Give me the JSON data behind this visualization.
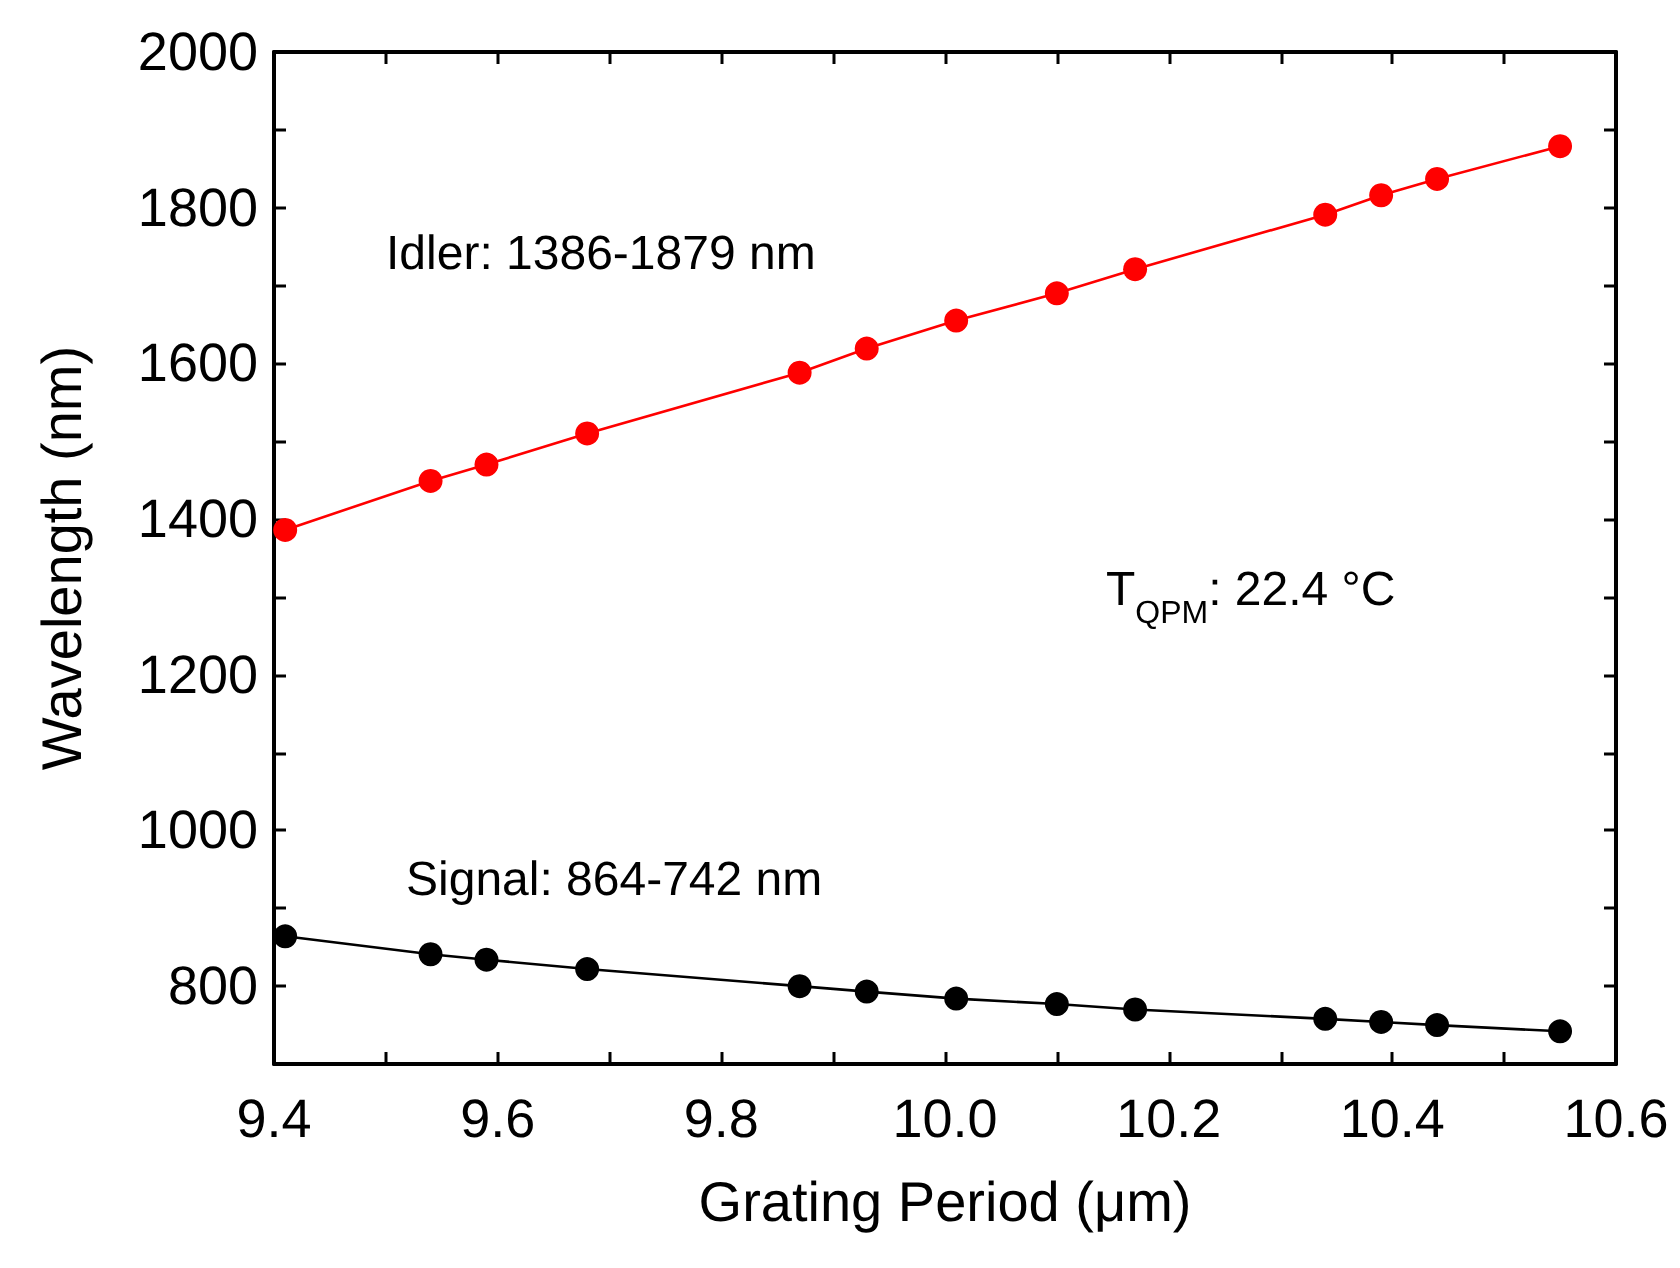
{
  "chart_data": {
    "type": "line",
    "xlabel": "Grating Period (μm)",
    "ylabel": "Wavelength (nm)",
    "xlim": [
      9.4,
      10.6
    ],
    "ylim": [
      700,
      2000
    ],
    "xticks": [
      9.4,
      {
        "value": 9.5,
        "label": null
      },
      9.6,
      {
        "value": 9.7,
        "label": null
      },
      9.8,
      {
        "value": 9.9,
        "label": null
      },
      "10.0",
      {
        "value": 10.1,
        "label": null
      },
      10.2,
      {
        "value": 10.3,
        "label": null
      },
      10.4,
      {
        "value": 10.5,
        "label": null
      },
      10.6
    ],
    "yticks": [
      {
        "value": 700,
        "label": null
      },
      800,
      {
        "value": 900,
        "label": null
      },
      1000,
      {
        "value": 1100,
        "label": null
      },
      1200,
      {
        "value": 1300,
        "label": null
      },
      1400,
      {
        "value": 1500,
        "label": null
      },
      1600,
      {
        "value": 1700,
        "label": null
      },
      1800,
      {
        "value": 1900,
        "label": null
      },
      2000
    ],
    "x": [
      9.41,
      9.54,
      9.59,
      9.68,
      9.87,
      9.93,
      10.01,
      10.1,
      10.17,
      10.34,
      10.39,
      10.44,
      10.55
    ],
    "series": [
      {
        "color": "#ff0000",
        "values": [
          1386,
          1449,
          1470,
          1510,
          1588,
          1619,
          1655,
          1690,
          1721,
          1791,
          1816,
          1837,
          1879
        ]
      },
      {
        "color": "#000000",
        "values": [
          864,
          841,
          834,
          822,
          800,
          793,
          784,
          777,
          770,
          758,
          754,
          750,
          742
        ]
      }
    ],
    "annotations": [
      "Idler: 1386-1879 nm",
      "T$_{QPM}$: 22.4 °C",
      "Signal: 864-742 nm"
    ],
    "marker": "circle",
    "line_style": "solid",
    "grid": false
  }
}
